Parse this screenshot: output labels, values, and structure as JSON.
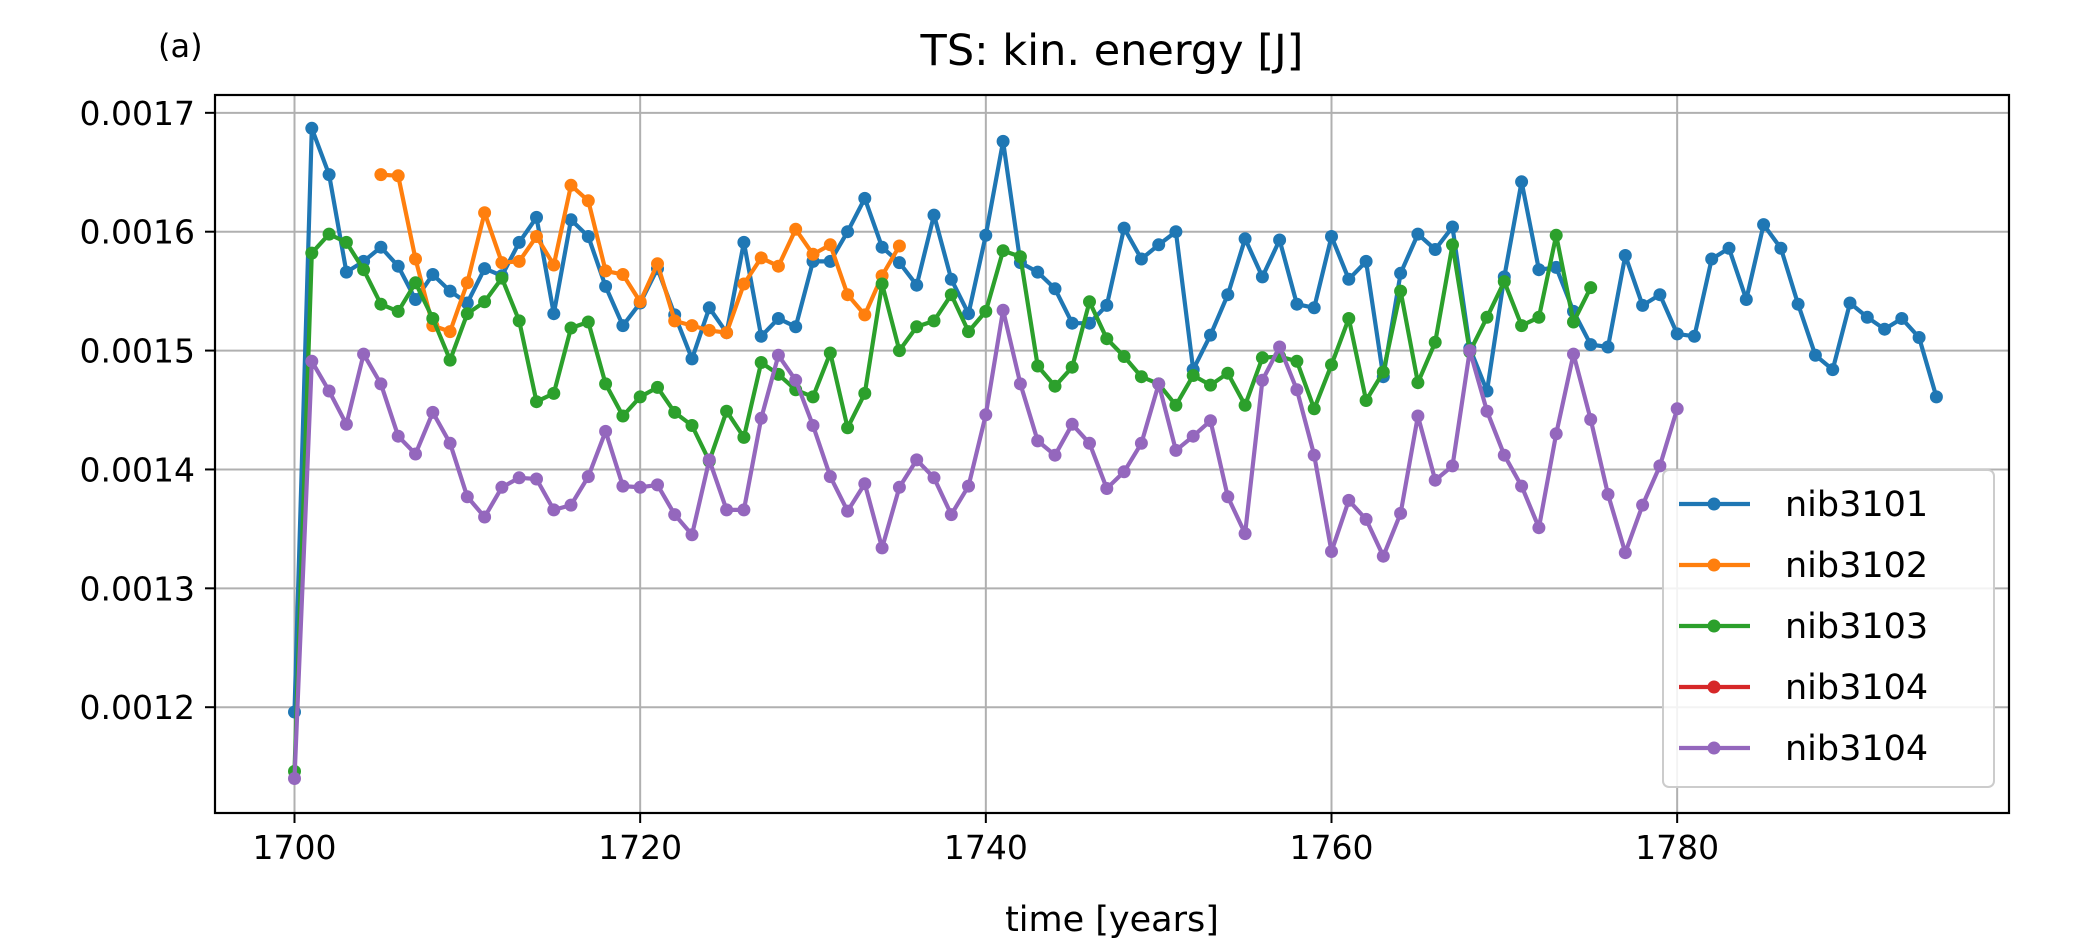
{
  "chart_data": {
    "type": "line",
    "panel_label": "(a)",
    "title": "TS: kin. energy [J]",
    "xlabel": "time [years]",
    "ylabel": "",
    "xlim": [
      1695.4,
      1799.2
    ],
    "ylim": [
      0.001111,
      0.001715
    ],
    "xticks": [
      1700,
      1720,
      1740,
      1760,
      1780
    ],
    "xtick_labels": [
      "1700",
      "1720",
      "1740",
      "1760",
      "1780"
    ],
    "yticks": [
      0.0012,
      0.0013,
      0.0014,
      0.0015,
      0.0016,
      0.0017
    ],
    "ytick_labels": [
      "0.0012",
      "0.0013",
      "0.0014",
      "0.0015",
      "0.0016",
      "0.0017"
    ],
    "grid": true,
    "legend_position": "lower-right",
    "series": [
      {
        "name": "nib3101",
        "color": "#1f77b4",
        "x_start": 1700,
        "values": [
          0.001196,
          0.001687,
          0.001648,
          0.001566,
          0.001575,
          0.001587,
          0.001571,
          0.001543,
          0.001564,
          0.00155,
          0.00154,
          0.001569,
          0.001563,
          0.001591,
          0.001612,
          0.001531,
          0.00161,
          0.001596,
          0.001554,
          0.001521,
          0.00154,
          0.001569,
          0.00153,
          0.001493,
          0.001536,
          0.001515,
          0.001591,
          0.001512,
          0.001527,
          0.00152,
          0.001575,
          0.001575,
          0.0016,
          0.001628,
          0.001587,
          0.001574,
          0.001555,
          0.001614,
          0.00156,
          0.001531,
          0.001597,
          0.001676,
          0.001574,
          0.001566,
          0.001552,
          0.001523,
          0.001523,
          0.001538,
          0.001603,
          0.001577,
          0.001589,
          0.0016,
          0.001484,
          0.001513,
          0.001547,
          0.001594,
          0.001562,
          0.001593,
          0.001539,
          0.001536,
          0.001596,
          0.00156,
          0.001575,
          0.001478,
          0.001565,
          0.001598,
          0.001585,
          0.001604,
          0.001502,
          0.001466,
          0.001562,
          0.001642,
          0.001568,
          0.00157,
          0.001533,
          0.001505,
          0.001503,
          0.00158,
          0.001538,
          0.001547,
          0.001514,
          0.001512,
          0.001577,
          0.001586,
          0.001543,
          0.001606,
          0.001586,
          0.001539,
          0.001496,
          0.001484,
          0.00154,
          0.001528,
          0.001518,
          0.001527,
          0.001511,
          0.001461
        ]
      },
      {
        "name": "nib3102",
        "color": "#ff7f0e",
        "x_start": 1705,
        "values": [
          0.001648,
          0.001647,
          0.001577,
          0.001521,
          0.001516,
          0.001557,
          0.001616,
          0.001574,
          0.001575,
          0.001596,
          0.001572,
          0.001639,
          0.001626,
          0.001567,
          0.001564,
          0.001541,
          0.001573,
          0.001525,
          0.001521,
          0.001517,
          0.001515,
          0.001556,
          0.001578,
          0.001571,
          0.001602,
          0.001581,
          0.001589,
          0.001547,
          0.00153,
          0.001563,
          0.001588
        ]
      },
      {
        "name": "nib3103",
        "color": "#2ca02c",
        "x_start": 1700,
        "values": [
          0.001146,
          0.001582,
          0.001598,
          0.001591,
          0.001568,
          0.001539,
          0.001533,
          0.001557,
          0.001527,
          0.001492,
          0.001531,
          0.001541,
          0.001561,
          0.001525,
          0.001457,
          0.001464,
          0.001519,
          0.001524,
          0.001472,
          0.001445,
          0.001461,
          0.001469,
          0.001448,
          0.001437,
          0.001407,
          0.001449,
          0.001427,
          0.00149,
          0.00148,
          0.001467,
          0.001461,
          0.001498,
          0.001435,
          0.001464,
          0.001556,
          0.0015,
          0.00152,
          0.001525,
          0.001547,
          0.001516,
          0.001533,
          0.001584,
          0.001579,
          0.001487,
          0.00147,
          0.001486,
          0.001541,
          0.00151,
          0.001495,
          0.001478,
          0.001472,
          0.001454,
          0.001479,
          0.001471,
          0.001481,
          0.001454,
          0.001494,
          0.001495,
          0.001491,
          0.001451,
          0.001488,
          0.001527,
          0.001458,
          0.001482,
          0.00155,
          0.001473,
          0.001507,
          0.001589,
          0.001499,
          0.001528,
          0.001558,
          0.001521,
          0.001528,
          0.001597,
          0.001524,
          0.001553
        ]
      },
      {
        "name": "nib3104",
        "color": "#d62728",
        "x_start": 1700,
        "values": []
      },
      {
        "name": "nib3104",
        "color": "#9467bd",
        "x_start": 1700,
        "values": [
          0.00114,
          0.001491,
          0.001466,
          0.001438,
          0.001497,
          0.001472,
          0.001428,
          0.001413,
          0.001448,
          0.001422,
          0.001377,
          0.00136,
          0.001385,
          0.001393,
          0.001392,
          0.001366,
          0.00137,
          0.001394,
          0.001432,
          0.001386,
          0.001385,
          0.001387,
          0.001362,
          0.001345,
          0.001408,
          0.001366,
          0.001366,
          0.001443,
          0.001496,
          0.001475,
          0.001437,
          0.001394,
          0.001365,
          0.001388,
          0.001334,
          0.001385,
          0.001408,
          0.001393,
          0.001362,
          0.001386,
          0.001446,
          0.001534,
          0.001472,
          0.001424,
          0.001412,
          0.001438,
          0.001422,
          0.001384,
          0.001398,
          0.001422,
          0.001472,
          0.001416,
          0.001428,
          0.001441,
          0.001377,
          0.001346,
          0.001475,
          0.001503,
          0.001467,
          0.001412,
          0.001331,
          0.001374,
          0.001358,
          0.001327,
          0.001363,
          0.001445,
          0.001391,
          0.001403,
          0.0015,
          0.001449,
          0.001412,
          0.001386,
          0.001351,
          0.00143,
          0.001497,
          0.001442,
          0.001379,
          0.00133,
          0.00137,
          0.001403,
          0.001451
        ]
      }
    ]
  }
}
